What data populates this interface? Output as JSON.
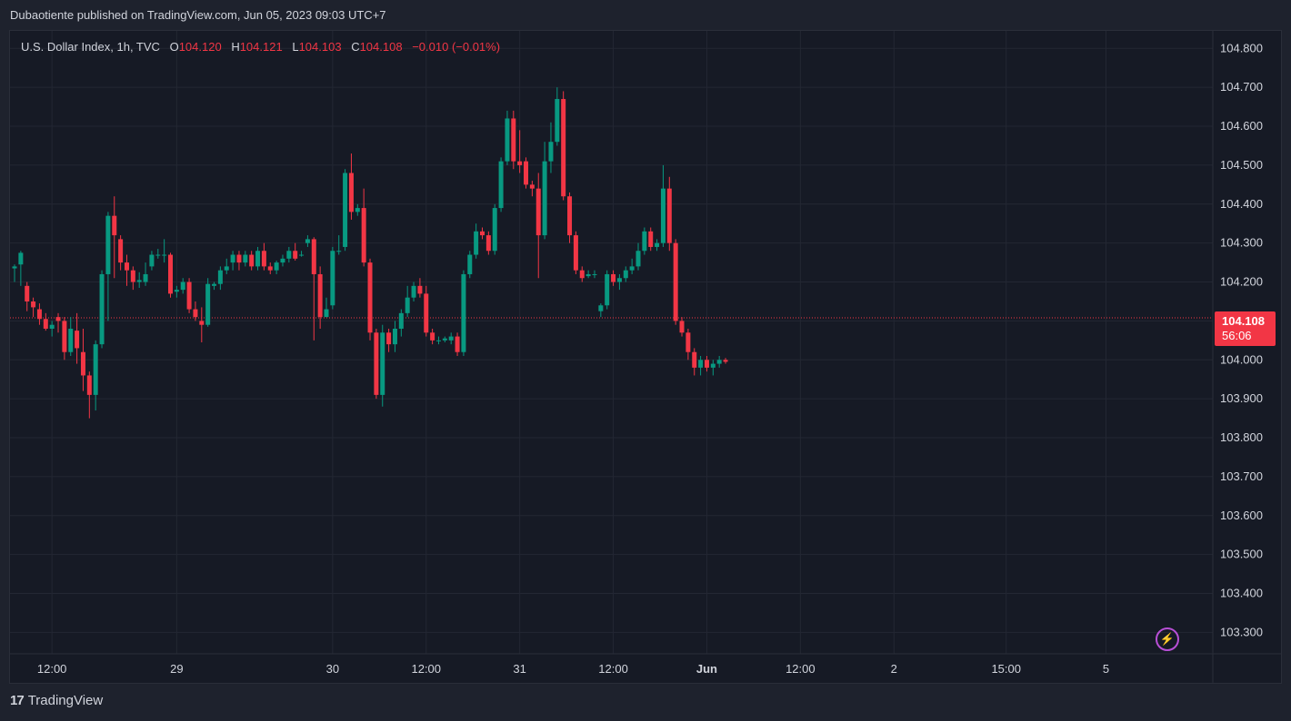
{
  "header": {
    "publish_text": "Dubaotiente published on TradingView.com, Jun 05, 2023 09:03 UTC+7"
  },
  "legend": {
    "symbol": "U.S. Dollar Index, 1h, TVC",
    "open_label": "O",
    "open": "104.120",
    "high_label": "H",
    "high": "104.121",
    "low_label": "L",
    "low": "104.103",
    "close_label": "C",
    "close": "104.108",
    "change": "−0.010 (−0.01%)"
  },
  "price_tag": {
    "price": "104.108",
    "countdown": "56:06"
  },
  "footer": {
    "logo_mark": "17",
    "brand": "TradingView"
  },
  "colors": {
    "up": "#089981",
    "down": "#f23645",
    "background": "#161a25",
    "grid": "#232733"
  },
  "icons": {
    "bolt": "lightning-bolt-icon"
  },
  "chart_data": {
    "type": "candlestick",
    "title": "U.S. Dollar Index, 1h, TVC",
    "ylim": [
      103.245,
      104.845
    ],
    "y_ticks": [
      "104.800",
      "104.700",
      "104.600",
      "104.500",
      "104.400",
      "104.300",
      "104.200",
      "104.100",
      "104.000",
      "103.900",
      "103.800",
      "103.700",
      "103.600",
      "103.500",
      "103.400",
      "103.300"
    ],
    "x_ticks": [
      {
        "label": "12:00",
        "i": 6
      },
      {
        "label": "29",
        "i": 26
      },
      {
        "label": "30",
        "i": 51
      },
      {
        "label": "12:00",
        "i": 66
      },
      {
        "label": "31",
        "i": 81
      },
      {
        "label": "12:00",
        "i": 96
      },
      {
        "label": "Jun",
        "i": 111
      },
      {
        "label": "12:00",
        "i": 126
      },
      {
        "label": "2",
        "i": 141
      },
      {
        "label": "15:00",
        "i": 159
      },
      {
        "label": "5",
        "i": 175
      }
    ],
    "current_price": 104.108,
    "grid": true,
    "candles": [
      [
        104.235,
        104.24,
        104.2,
        104.245
      ],
      [
        104.245,
        104.275,
        104.19,
        104.28
      ],
      [
        104.19,
        104.15,
        104.125,
        104.2
      ],
      [
        104.15,
        104.135,
        104.11,
        104.16
      ],
      [
        104.13,
        104.105,
        104.09,
        104.145
      ],
      [
        104.105,
        104.08,
        104.075,
        104.12
      ],
      [
        104.08,
        104.09,
        104.06,
        104.1
      ],
      [
        104.11,
        104.1,
        104.07,
        104.12
      ],
      [
        104.1,
        104.02,
        104.0,
        104.11
      ],
      [
        104.02,
        104.08,
        104.01,
        104.11
      ],
      [
        104.075,
        104.03,
        103.99,
        104.12
      ],
      [
        104.02,
        103.96,
        103.92,
        104.08
      ],
      [
        103.96,
        103.91,
        103.85,
        103.97
      ],
      [
        103.91,
        104.04,
        103.87,
        104.05
      ],
      [
        104.04,
        104.22,
        104.03,
        104.23
      ],
      [
        104.22,
        104.37,
        104.1,
        104.38
      ],
      [
        104.37,
        104.32,
        104.21,
        104.42
      ],
      [
        104.31,
        104.25,
        104.23,
        104.32
      ],
      [
        104.25,
        104.23,
        104.19,
        104.27
      ],
      [
        104.23,
        104.2,
        104.18,
        104.24
      ],
      [
        104.2,
        104.205,
        104.185,
        104.225
      ],
      [
        104.2,
        104.22,
        104.19,
        104.25
      ],
      [
        104.24,
        104.27,
        104.23,
        104.28
      ],
      [
        104.27,
        104.27,
        104.26,
        104.285
      ],
      [
        104.27,
        104.27,
        104.25,
        104.31
      ],
      [
        104.27,
        104.17,
        104.16,
        104.275
      ],
      [
        104.175,
        104.18,
        104.16,
        104.19
      ],
      [
        104.18,
        104.2,
        104.17,
        104.21
      ],
      [
        104.2,
        104.13,
        104.12,
        104.21
      ],
      [
        104.13,
        104.11,
        104.1,
        104.15
      ],
      [
        104.1,
        104.09,
        104.045,
        104.135
      ],
      [
        104.09,
        104.195,
        104.085,
        104.21
      ],
      [
        104.19,
        104.195,
        104.18,
        104.2
      ],
      [
        104.195,
        104.23,
        104.18,
        104.24
      ],
      [
        104.23,
        104.24,
        104.22,
        104.26
      ],
      [
        104.25,
        104.27,
        104.23,
        104.28
      ],
      [
        104.27,
        104.25,
        104.23,
        104.28
      ],
      [
        104.25,
        104.27,
        104.24,
        104.28
      ],
      [
        104.27,
        104.24,
        104.23,
        104.28
      ],
      [
        104.24,
        104.28,
        104.23,
        104.29
      ],
      [
        104.28,
        104.24,
        104.23,
        104.3
      ],
      [
        104.24,
        104.23,
        104.22,
        104.25
      ],
      [
        104.23,
        104.25,
        104.22,
        104.255
      ],
      [
        104.25,
        104.26,
        104.24,
        104.27
      ],
      [
        104.26,
        104.28,
        104.25,
        104.29
      ],
      [
        104.28,
        104.26,
        104.255,
        104.3
      ],
      [
        104.27,
        104.27,
        104.265,
        104.28
      ],
      [
        104.3,
        104.31,
        104.29,
        104.32
      ],
      [
        104.31,
        104.22,
        104.05,
        104.315
      ],
      [
        104.22,
        104.11,
        104.08,
        104.24
      ],
      [
        104.11,
        104.13,
        104.11,
        104.16
      ],
      [
        104.14,
        104.28,
        104.13,
        104.29
      ],
      [
        104.28,
        104.28,
        104.27,
        104.32
      ],
      [
        104.29,
        104.48,
        104.28,
        104.49
      ],
      [
        104.48,
        104.38,
        104.36,
        104.53
      ],
      [
        104.38,
        104.39,
        104.37,
        104.4
      ],
      [
        104.39,
        104.25,
        104.24,
        104.44
      ],
      [
        104.25,
        104.07,
        104.05,
        104.26
      ],
      [
        104.07,
        103.91,
        103.9,
        104.08
      ],
      [
        103.91,
        104.07,
        103.88,
        104.09
      ],
      [
        104.07,
        104.04,
        104.02,
        104.08
      ],
      [
        104.04,
        104.08,
        104.02,
        104.1
      ],
      [
        104.08,
        104.12,
        104.06,
        104.13
      ],
      [
        104.12,
        104.16,
        104.11,
        104.19
      ],
      [
        104.16,
        104.19,
        104.15,
        104.2
      ],
      [
        104.19,
        104.17,
        104.16,
        104.21
      ],
      [
        104.17,
        104.07,
        104.06,
        104.19
      ],
      [
        104.07,
        104.05,
        104.04,
        104.08
      ],
      [
        104.05,
        104.05,
        104.04,
        104.06
      ],
      [
        104.05,
        104.055,
        104.045,
        104.06
      ],
      [
        104.05,
        104.06,
        104.04,
        104.07
      ],
      [
        104.06,
        104.02,
        104.01,
        104.07
      ],
      [
        104.02,
        104.22,
        104.01,
        104.23
      ],
      [
        104.22,
        104.27,
        104.21,
        104.28
      ],
      [
        104.27,
        104.33,
        104.26,
        104.35
      ],
      [
        104.33,
        104.32,
        104.31,
        104.34
      ],
      [
        104.32,
        104.28,
        104.27,
        104.33
      ],
      [
        104.28,
        104.39,
        104.27,
        104.4
      ],
      [
        104.39,
        104.51,
        104.38,
        104.52
      ],
      [
        104.51,
        104.62,
        104.5,
        104.64
      ],
      [
        104.62,
        104.51,
        104.49,
        104.64
      ],
      [
        104.51,
        104.5,
        104.48,
        104.59
      ],
      [
        104.51,
        104.45,
        104.44,
        104.52
      ],
      [
        104.45,
        104.44,
        104.42,
        104.46
      ],
      [
        104.44,
        104.32,
        104.21,
        104.48
      ],
      [
        104.32,
        104.51,
        104.31,
        104.56
      ],
      [
        104.51,
        104.56,
        104.48,
        104.61
      ],
      [
        104.56,
        104.67,
        104.55,
        104.7
      ],
      [
        104.67,
        104.42,
        104.41,
        104.69
      ],
      [
        104.42,
        104.32,
        104.3,
        104.43
      ],
      [
        104.32,
        104.23,
        104.22,
        104.33
      ],
      [
        104.23,
        104.21,
        104.2,
        104.24
      ],
      [
        104.215,
        104.22,
        104.21,
        104.23
      ],
      [
        104.22,
        104.22,
        104.21,
        104.23
      ],
      [
        104.125,
        104.14,
        104.11,
        104.145
      ],
      [
        104.14,
        104.22,
        104.13,
        104.23
      ],
      [
        104.22,
        104.2,
        104.19,
        104.23
      ],
      [
        104.2,
        104.21,
        104.18,
        104.22
      ],
      [
        104.21,
        104.23,
        104.2,
        104.24
      ],
      [
        104.23,
        104.24,
        104.22,
        104.26
      ],
      [
        104.24,
        104.28,
        104.23,
        104.3
      ],
      [
        104.28,
        104.33,
        104.27,
        104.34
      ],
      [
        104.33,
        104.29,
        104.28,
        104.34
      ],
      [
        104.29,
        104.3,
        104.28,
        104.31
      ],
      [
        104.3,
        104.44,
        104.29,
        104.5
      ],
      [
        104.44,
        104.3,
        104.28,
        104.47
      ],
      [
        104.3,
        104.1,
        104.09,
        104.31
      ],
      [
        104.1,
        104.07,
        104.06,
        104.11
      ],
      [
        104.07,
        104.02,
        104.0,
        104.08
      ],
      [
        104.02,
        103.98,
        103.96,
        104.03
      ],
      [
        103.98,
        104.0,
        103.96,
        104.01
      ],
      [
        104.0,
        103.98,
        103.97,
        104.01
      ],
      [
        103.98,
        103.99,
        103.96,
        104.0
      ],
      [
        103.99,
        104.0,
        103.98,
        104.01
      ],
      [
        104.0,
        103.995,
        103.99,
        104.005
      ]
    ]
  }
}
